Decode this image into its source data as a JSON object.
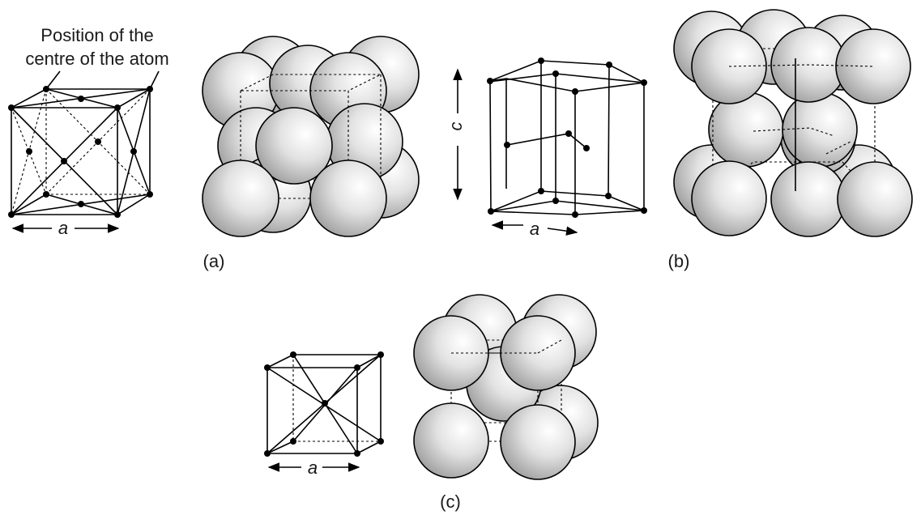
{
  "annotation": {
    "line1": "Position of the",
    "line2": "centre of the atom"
  },
  "labels": {
    "a_symbol": "a",
    "c_symbol": "c",
    "panel_a": "(a)",
    "panel_b": "(b)",
    "panel_c": "(c)"
  },
  "colors": {
    "sphere_highlight": "#ffffff",
    "sphere_shade": "#9a9a9a",
    "line": "#000000"
  }
}
